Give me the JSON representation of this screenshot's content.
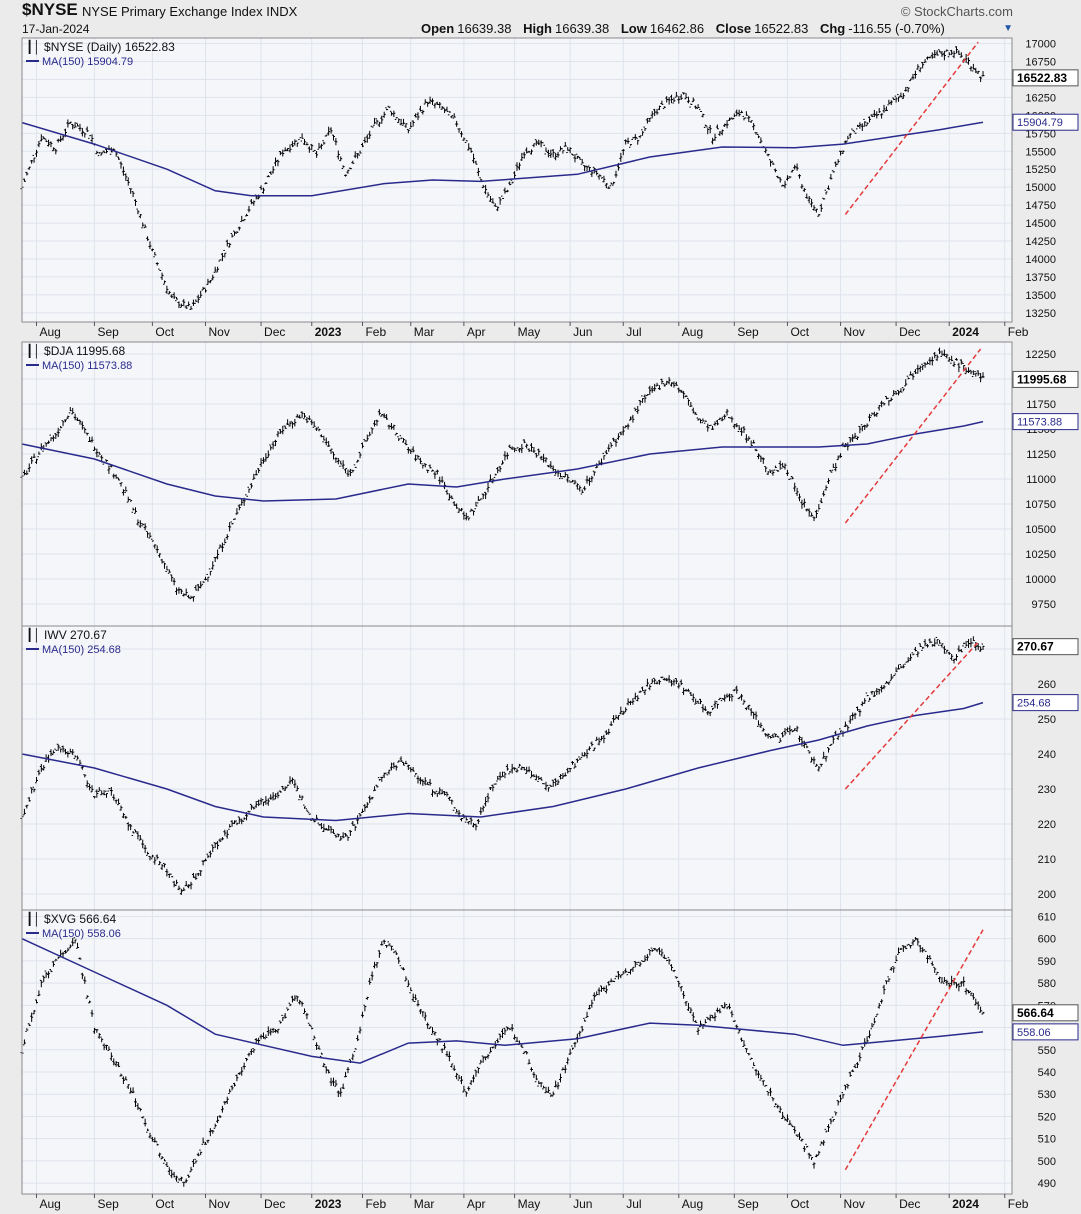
{
  "header": {
    "symbol": "$NYSE",
    "name": "NYSE Primary Exchange Index",
    "exchange": "INDX",
    "date": "17-Jan-2024",
    "brand": "© StockCharts.com",
    "open_label": "Open",
    "open": "16639.38",
    "high_label": "High",
    "high": "16639.38",
    "low_label": "Low",
    "low": "16462.86",
    "close_label": "Close",
    "close": "16522.83",
    "chg_label": "Chg",
    "chg": "-116.55 (-0.70%)",
    "arrow": "▼"
  },
  "colors": {
    "price": "#000000",
    "ma": "#2a2a8c",
    "trend": "#e43a3a",
    "panel_bg": "#f4f6fa",
    "grid": "#dfe3ec"
  },
  "chart_data": [
    {
      "type": "line",
      "legend": "$NYSE (Daily) 16522.83",
      "ma_label": "MA(150) 15904.79",
      "last": "16522.83",
      "ma_last": "15904.79",
      "ylim": [
        13150,
        17050
      ],
      "yticks": [
        13250,
        13500,
        13750,
        14000,
        14250,
        14500,
        14750,
        15000,
        15250,
        15500,
        15750,
        16000,
        16250,
        16500,
        16750,
        17000
      ],
      "price_points": [
        [
          0,
          15000
        ],
        [
          8,
          15700
        ],
        [
          14,
          15550
        ],
        [
          20,
          15900
        ],
        [
          28,
          15750
        ],
        [
          32,
          15450
        ],
        [
          38,
          15550
        ],
        [
          46,
          14900
        ],
        [
          54,
          14100
        ],
        [
          62,
          13450
        ],
        [
          70,
          13300
        ],
        [
          78,
          13700
        ],
        [
          86,
          14250
        ],
        [
          94,
          14700
        ],
        [
          100,
          15000
        ],
        [
          108,
          15500
        ],
        [
          116,
          15700
        ],
        [
          122,
          15450
        ],
        [
          128,
          15800
        ],
        [
          134,
          15200
        ],
        [
          140,
          15500
        ],
        [
          146,
          15850
        ],
        [
          152,
          16100
        ],
        [
          160,
          15800
        ],
        [
          168,
          16200
        ],
        [
          174,
          16100
        ],
        [
          180,
          15900
        ],
        [
          186,
          15500
        ],
        [
          190,
          15100
        ],
        [
          196,
          14700
        ],
        [
          202,
          15000
        ],
        [
          208,
          15500
        ],
        [
          214,
          15600
        ],
        [
          220,
          15450
        ],
        [
          226,
          15550
        ],
        [
          232,
          15300
        ],
        [
          238,
          15200
        ],
        [
          244,
          15000
        ],
        [
          250,
          15600
        ],
        [
          256,
          15700
        ],
        [
          262,
          16050
        ],
        [
          268,
          16200
        ],
        [
          274,
          16300
        ],
        [
          280,
          16100
        ],
        [
          286,
          15700
        ],
        [
          292,
          15900
        ],
        [
          298,
          16050
        ],
        [
          304,
          15800
        ],
        [
          310,
          15350
        ],
        [
          316,
          15000
        ],
        [
          320,
          15300
        ],
        [
          326,
          14800
        ],
        [
          330,
          14650
        ],
        [
          336,
          15200
        ],
        [
          342,
          15700
        ],
        [
          350,
          15900
        ],
        [
          358,
          16100
        ],
        [
          366,
          16350
        ],
        [
          372,
          16700
        ],
        [
          380,
          16850
        ],
        [
          386,
          16900
        ],
        [
          392,
          16750
        ],
        [
          398,
          16522.83
        ]
      ],
      "ma_points": [
        [
          0,
          15900
        ],
        [
          30,
          15600
        ],
        [
          60,
          15250
        ],
        [
          80,
          14950
        ],
        [
          95,
          14880
        ],
        [
          120,
          14880
        ],
        [
          150,
          15050
        ],
        [
          170,
          15100
        ],
        [
          190,
          15080
        ],
        [
          230,
          15180
        ],
        [
          260,
          15420
        ],
        [
          290,
          15560
        ],
        [
          320,
          15550
        ],
        [
          340,
          15600
        ],
        [
          360,
          15700
        ],
        [
          380,
          15800
        ],
        [
          398,
          15904.79
        ]
      ],
      "trend": [
        [
          341,
          14620
        ],
        [
          396,
          17020
        ]
      ]
    },
    {
      "type": "line",
      "legend": "$DJA 11995.68",
      "ma_label": "MA(150) 11573.88",
      "last": "11995.68",
      "ma_last": "11573.88",
      "ylim": [
        9550,
        12350
      ],
      "yticks": [
        9750,
        10000,
        10250,
        10500,
        10750,
        11000,
        11250,
        11500,
        11750,
        12000,
        12250
      ],
      "price_points": [
        [
          0,
          11000
        ],
        [
          8,
          11300
        ],
        [
          14,
          11450
        ],
        [
          20,
          11700
        ],
        [
          28,
          11400
        ],
        [
          34,
          11200
        ],
        [
          40,
          11000
        ],
        [
          48,
          10600
        ],
        [
          56,
          10300
        ],
        [
          64,
          9900
        ],
        [
          70,
          9800
        ],
        [
          76,
          10000
        ],
        [
          84,
          10400
        ],
        [
          92,
          10800
        ],
        [
          100,
          11200
        ],
        [
          108,
          11500
        ],
        [
          116,
          11650
        ],
        [
          124,
          11450
        ],
        [
          130,
          11200
        ],
        [
          136,
          11050
        ],
        [
          142,
          11350
        ],
        [
          148,
          11650
        ],
        [
          154,
          11500
        ],
        [
          160,
          11300
        ],
        [
          166,
          11150
        ],
        [
          172,
          11050
        ],
        [
          178,
          10800
        ],
        [
          184,
          10600
        ],
        [
          190,
          10800
        ],
        [
          196,
          11050
        ],
        [
          202,
          11300
        ],
        [
          208,
          11350
        ],
        [
          214,
          11250
        ],
        [
          220,
          11100
        ],
        [
          226,
          11000
        ],
        [
          232,
          10900
        ],
        [
          238,
          11100
        ],
        [
          244,
          11350
        ],
        [
          250,
          11500
        ],
        [
          256,
          11750
        ],
        [
          262,
          11900
        ],
        [
          268,
          12000
        ],
        [
          274,
          11850
        ],
        [
          280,
          11600
        ],
        [
          286,
          11500
        ],
        [
          292,
          11650
        ],
        [
          298,
          11500
        ],
        [
          304,
          11300
        ],
        [
          310,
          11050
        ],
        [
          316,
          11150
        ],
        [
          322,
          10800
        ],
        [
          328,
          10600
        ],
        [
          334,
          11000
        ],
        [
          340,
          11300
        ],
        [
          348,
          11500
        ],
        [
          356,
          11750
        ],
        [
          364,
          11900
        ],
        [
          372,
          12150
        ],
        [
          380,
          12250
        ],
        [
          388,
          12150
        ],
        [
          398,
          11995.68
        ]
      ],
      "ma_points": [
        [
          0,
          11350
        ],
        [
          30,
          11200
        ],
        [
          60,
          10950
        ],
        [
          80,
          10830
        ],
        [
          100,
          10780
        ],
        [
          130,
          10800
        ],
        [
          160,
          10950
        ],
        [
          180,
          10920
        ],
        [
          200,
          11000
        ],
        [
          230,
          11100
        ],
        [
          260,
          11250
        ],
        [
          290,
          11320
        ],
        [
          330,
          11320
        ],
        [
          350,
          11350
        ],
        [
          370,
          11450
        ],
        [
          390,
          11530
        ],
        [
          398,
          11573.88
        ]
      ],
      "trend": [
        [
          341,
          10560
        ],
        [
          397,
          12300
        ]
      ]
    },
    {
      "type": "line",
      "legend": "IWV 270.67",
      "ma_label": "MA(150) 254.68",
      "last": "270.67",
      "ma_last": "254.68",
      "ylim": [
        196,
        276
      ],
      "yticks": [
        200,
        210,
        220,
        230,
        240,
        250,
        260,
        270
      ],
      "price_points": [
        [
          0,
          222
        ],
        [
          8,
          236
        ],
        [
          14,
          242
        ],
        [
          22,
          240
        ],
        [
          30,
          228
        ],
        [
          36,
          230
        ],
        [
          44,
          220
        ],
        [
          52,
          212
        ],
        [
          60,
          207
        ],
        [
          66,
          200
        ],
        [
          72,
          205
        ],
        [
          80,
          214
        ],
        [
          88,
          220
        ],
        [
          96,
          225
        ],
        [
          104,
          228
        ],
        [
          112,
          232
        ],
        [
          120,
          222
        ],
        [
          128,
          218
        ],
        [
          134,
          216
        ],
        [
          140,
          222
        ],
        [
          148,
          232
        ],
        [
          156,
          238
        ],
        [
          162,
          235
        ],
        [
          170,
          230
        ],
        [
          176,
          228
        ],
        [
          182,
          222
        ],
        [
          188,
          220
        ],
        [
          194,
          230
        ],
        [
          200,
          235
        ],
        [
          206,
          236
        ],
        [
          212,
          234
        ],
        [
          218,
          230
        ],
        [
          224,
          234
        ],
        [
          230,
          238
        ],
        [
          236,
          242
        ],
        [
          242,
          246
        ],
        [
          248,
          252
        ],
        [
          254,
          256
        ],
        [
          260,
          260
        ],
        [
          266,
          262
        ],
        [
          272,
          260
        ],
        [
          278,
          256
        ],
        [
          284,
          252
        ],
        [
          290,
          256
        ],
        [
          296,
          258
        ],
        [
          302,
          252
        ],
        [
          308,
          246
        ],
        [
          314,
          244
        ],
        [
          320,
          248
        ],
        [
          326,
          240
        ],
        [
          330,
          236
        ],
        [
          336,
          244
        ],
        [
          342,
          248
        ],
        [
          350,
          256
        ],
        [
          358,
          260
        ],
        [
          366,
          266
        ],
        [
          372,
          270
        ],
        [
          380,
          272
        ],
        [
          386,
          268
        ],
        [
          392,
          272
        ],
        [
          398,
          270.67
        ]
      ],
      "ma_points": [
        [
          0,
          240
        ],
        [
          30,
          236
        ],
        [
          60,
          230
        ],
        [
          80,
          225
        ],
        [
          100,
          222
        ],
        [
          130,
          221
        ],
        [
          160,
          223
        ],
        [
          190,
          222
        ],
        [
          220,
          225
        ],
        [
          250,
          230
        ],
        [
          280,
          236
        ],
        [
          310,
          241
        ],
        [
          330,
          244
        ],
        [
          350,
          248
        ],
        [
          370,
          251
        ],
        [
          390,
          253
        ],
        [
          398,
          254.68
        ]
      ],
      "trend": [
        [
          341,
          230
        ],
        [
          396,
          272
        ]
      ]
    },
    {
      "type": "line",
      "legend": "$XVG 566.64",
      "ma_label": "MA(150) 558.06",
      "last": "566.64",
      "ma_last": "558.06",
      "ylim": [
        486,
        612
      ],
      "yticks": [
        490,
        500,
        510,
        520,
        530,
        540,
        550,
        560,
        570,
        580,
        590,
        600,
        610
      ],
      "price_points": [
        [
          0,
          550
        ],
        [
          8,
          580
        ],
        [
          14,
          590
        ],
        [
          22,
          600
        ],
        [
          30,
          560
        ],
        [
          38,
          545
        ],
        [
          46,
          530
        ],
        [
          54,
          510
        ],
        [
          62,
          495
        ],
        [
          68,
          490
        ],
        [
          74,
          505
        ],
        [
          82,
          520
        ],
        [
          90,
          540
        ],
        [
          98,
          555
        ],
        [
          106,
          560
        ],
        [
          114,
          575
        ],
        [
          120,
          560
        ],
        [
          126,
          540
        ],
        [
          132,
          530
        ],
        [
          138,
          550
        ],
        [
          144,
          580
        ],
        [
          150,
          600
        ],
        [
          156,
          590
        ],
        [
          164,
          570
        ],
        [
          172,
          555
        ],
        [
          178,
          545
        ],
        [
          184,
          530
        ],
        [
          190,
          545
        ],
        [
          196,
          552
        ],
        [
          202,
          560
        ],
        [
          208,
          550
        ],
        [
          214,
          535
        ],
        [
          220,
          530
        ],
        [
          226,
          545
        ],
        [
          232,
          560
        ],
        [
          238,
          575
        ],
        [
          244,
          580
        ],
        [
          250,
          585
        ],
        [
          256,
          590
        ],
        [
          262,
          595
        ],
        [
          268,
          590
        ],
        [
          274,
          575
        ],
        [
          280,
          560
        ],
        [
          286,
          565
        ],
        [
          292,
          570
        ],
        [
          298,
          555
        ],
        [
          304,
          540
        ],
        [
          310,
          530
        ],
        [
          316,
          520
        ],
        [
          322,
          510
        ],
        [
          328,
          500
        ],
        [
          334,
          515
        ],
        [
          340,
          530
        ],
        [
          346,
          545
        ],
        [
          352,
          560
        ],
        [
          358,
          580
        ],
        [
          364,
          595
        ],
        [
          370,
          600
        ],
        [
          376,
          590
        ],
        [
          382,
          580
        ],
        [
          390,
          580
        ],
        [
          398,
          566.64
        ]
      ],
      "ma_points": [
        [
          0,
          600
        ],
        [
          30,
          585
        ],
        [
          60,
          570
        ],
        [
          80,
          557
        ],
        [
          100,
          552
        ],
        [
          120,
          547
        ],
        [
          140,
          544
        ],
        [
          160,
          553
        ],
        [
          180,
          554
        ],
        [
          200,
          552
        ],
        [
          230,
          555
        ],
        [
          260,
          562
        ],
        [
          280,
          561
        ],
        [
          300,
          559
        ],
        [
          320,
          557
        ],
        [
          340,
          552
        ],
        [
          360,
          554
        ],
        [
          380,
          556
        ],
        [
          398,
          558.06
        ]
      ],
      "trend": [
        [
          341,
          496
        ],
        [
          398,
          604
        ]
      ]
    }
  ],
  "xaxis": {
    "labels": [
      "Aug",
      "Sep",
      "Oct",
      "Nov",
      "Dec",
      "2023",
      "Feb",
      "Mar",
      "Apr",
      "May",
      "Jun",
      "Jul",
      "Aug",
      "Sep",
      "Oct",
      "Nov",
      "Dec",
      "2024",
      "Feb"
    ],
    "bold": [
      "2023",
      "2024"
    ],
    "positions": [
      6,
      30,
      54,
      76,
      99,
      120,
      141,
      161,
      183,
      204,
      227,
      249,
      272,
      295,
      317,
      339,
      362,
      384,
      407
    ]
  }
}
